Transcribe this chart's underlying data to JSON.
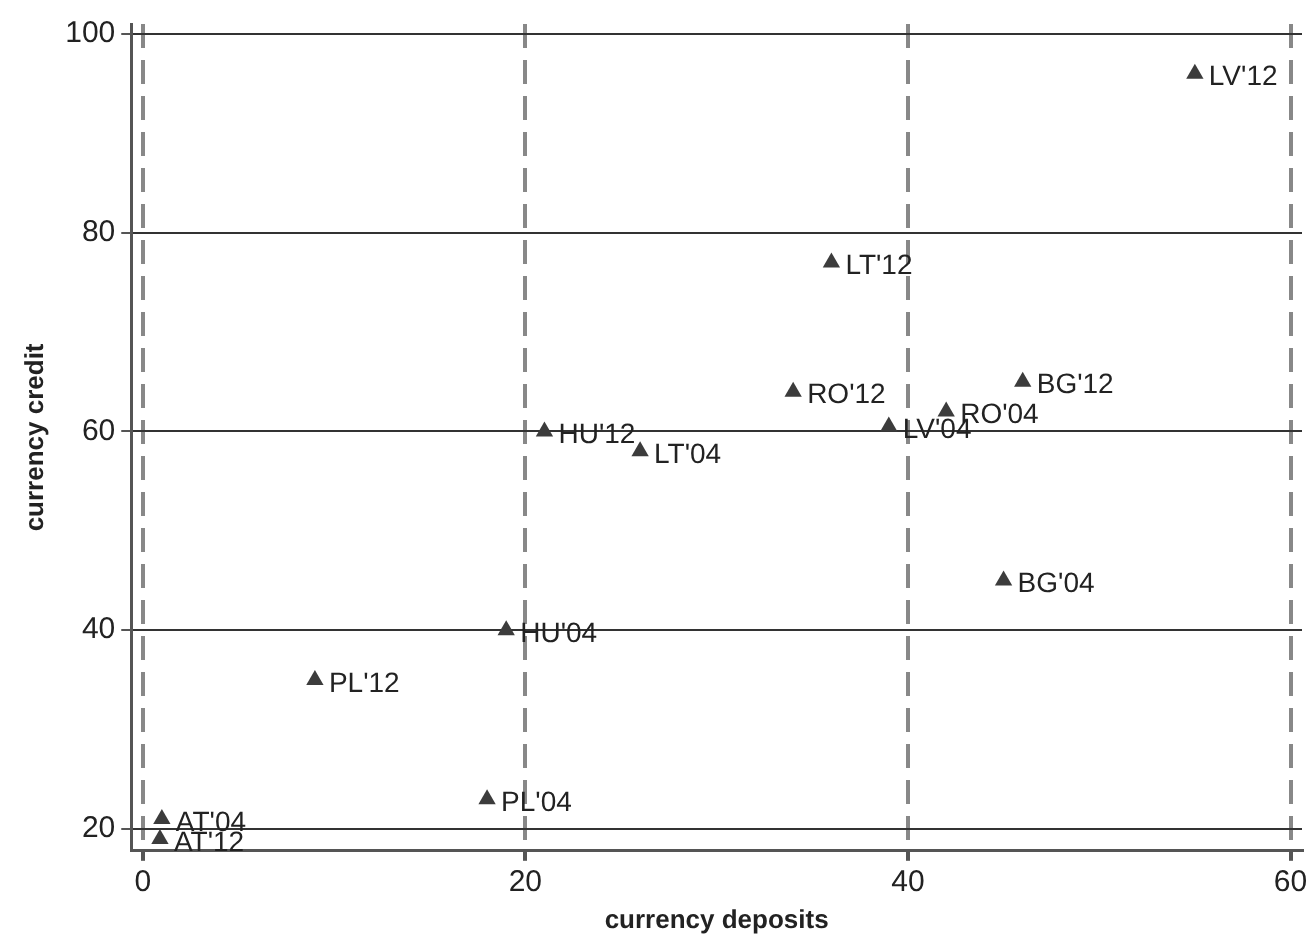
{
  "chart_data": {
    "type": "scatter",
    "xlabel": "currency deposits",
    "ylabel": "currency credit",
    "x": [
      55,
      36,
      34,
      46,
      42,
      39,
      45,
      21,
      26,
      19,
      9,
      18,
      1,
      0.9
    ],
    "series": [
      {
        "color": "#3c3c3c",
        "values": [
          96,
          77,
          64,
          65,
          62,
          60.5,
          45,
          60,
          58,
          40,
          35,
          23,
          21,
          19
        ]
      }
    ],
    "annotations": [
      {
        "text": "LV'12",
        "x": 55,
        "y": 96
      },
      {
        "text": "LT'12",
        "x": 36,
        "y": 77
      },
      {
        "text": "RO'12",
        "x": 34,
        "y": 64
      },
      {
        "text": "BG'12",
        "x": 46,
        "y": 65
      },
      {
        "text": "RO'04",
        "x": 42,
        "y": 62
      },
      {
        "text": "LV'04",
        "x": 39,
        "y": 60.5
      },
      {
        "text": "BG'04",
        "x": 45,
        "y": 45
      },
      {
        "text": "HU'12",
        "x": 21,
        "y": 60
      },
      {
        "text": "LT'04",
        "x": 26,
        "y": 58
      },
      {
        "text": "HU'04",
        "x": 19,
        "y": 40
      },
      {
        "text": "PL'12",
        "x": 9,
        "y": 35
      },
      {
        "text": "PL'04",
        "x": 18,
        "y": 23
      },
      {
        "text": "AT'04",
        "x": 1,
        "y": 21
      },
      {
        "text": "AT'12",
        "x": 0.9,
        "y": 19
      }
    ],
    "xlim": [
      -0.6,
      60.6
    ],
    "xticks": [
      0,
      20,
      40,
      60
    ],
    "ylim": [
      17.8,
      101
    ],
    "yticks": [
      20,
      40,
      60,
      80,
      100
    ],
    "grid": true,
    "legend": false,
    "marker": "triangle"
  }
}
